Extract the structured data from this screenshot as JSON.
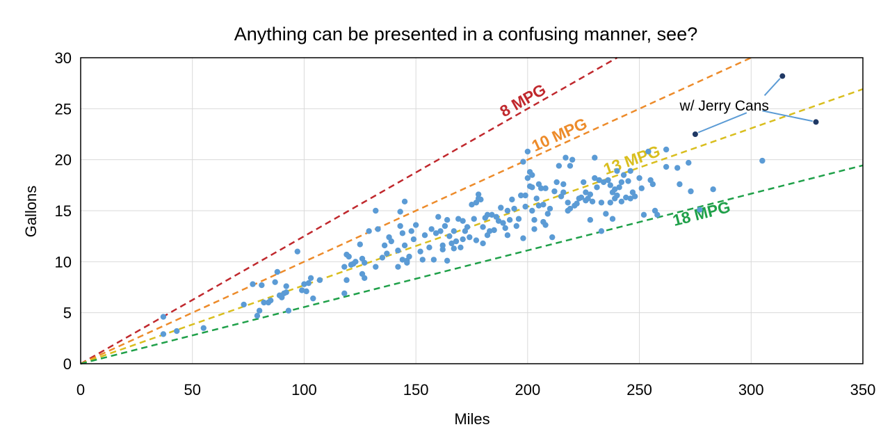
{
  "chart_data": {
    "type": "scatter",
    "title": "Anything can be presented in a confusing manner, see?",
    "xlabel": "Miles",
    "ylabel": "Gallons",
    "xlim": [
      0,
      350
    ],
    "ylim": [
      0,
      30
    ],
    "x_ticks": [
      0,
      50,
      100,
      150,
      200,
      250,
      300,
      350
    ],
    "y_ticks": [
      0,
      5,
      10,
      15,
      20,
      25,
      30
    ],
    "grid": true,
    "legend": "none",
    "colors": {
      "points": "#5B9BD5",
      "highlight_points": "#1F3864",
      "grid": "#D9D9D9",
      "mpg_8": "#C0282D",
      "mpg_10": "#ED8B2A",
      "mpg_13": "#D9BE1E",
      "mpg_18": "#1FA049"
    },
    "reference_lines": [
      {
        "label": "8 MPG",
        "mpg": 8,
        "color": "#C0282D"
      },
      {
        "label": "10 MPG",
        "mpg": 10,
        "color": "#ED8B2A"
      },
      {
        "label": "13 MPG",
        "mpg": 13,
        "color": "#D9BE1E"
      },
      {
        "label": "18 MPG",
        "mpg": 18,
        "color": "#1FA049"
      }
    ],
    "annotation": {
      "text": "w/ Jerry Cans",
      "points": [
        [
          275,
          22.5
        ],
        [
          314,
          28.2
        ],
        [
          329,
          23.7
        ]
      ]
    },
    "points": [
      [
        37,
        4.6
      ],
      [
        37,
        2.9
      ],
      [
        43,
        3.2
      ],
      [
        55,
        3.5
      ],
      [
        73,
        5.8
      ],
      [
        77,
        7.8
      ],
      [
        79,
        4.7
      ],
      [
        80,
        5.2
      ],
      [
        81,
        7.7
      ],
      [
        82,
        6.0
      ],
      [
        84,
        6.0
      ],
      [
        85,
        6.2
      ],
      [
        87,
        8.0
      ],
      [
        88,
        9.0
      ],
      [
        89,
        6.7
      ],
      [
        90,
        6.5
      ],
      [
        91,
        6.9
      ],
      [
        92,
        7.6
      ],
      [
        92,
        7.0
      ],
      [
        93,
        5.2
      ],
      [
        97,
        11.0
      ],
      [
        99,
        7.2
      ],
      [
        100,
        7.8
      ],
      [
        101,
        7.1
      ],
      [
        102,
        7.9
      ],
      [
        103,
        8.4
      ],
      [
        104,
        6.4
      ],
      [
        107,
        8.2
      ],
      [
        118,
        6.9
      ],
      [
        118,
        9.5
      ],
      [
        119,
        10.7
      ],
      [
        119,
        8.2
      ],
      [
        120,
        10.5
      ],
      [
        121,
        9.7
      ],
      [
        122,
        9.8
      ],
      [
        123,
        10.0
      ],
      [
        125,
        11.7
      ],
      [
        126,
        10.3
      ],
      [
        126,
        8.8
      ],
      [
        127,
        8.4
      ],
      [
        127,
        9.9
      ],
      [
        129,
        13.0
      ],
      [
        132,
        15.0
      ],
      [
        132,
        9.5
      ],
      [
        133,
        13.2
      ],
      [
        135,
        10.4
      ],
      [
        136,
        11.6
      ],
      [
        137,
        10.8
      ],
      [
        138,
        12.4
      ],
      [
        139,
        12.0
      ],
      [
        142,
        9.5
      ],
      [
        142,
        11.1
      ],
      [
        143,
        14.9
      ],
      [
        143,
        13.5
      ],
      [
        144,
        12.8
      ],
      [
        144,
        10.2
      ],
      [
        145,
        15.9
      ],
      [
        145,
        11.6
      ],
      [
        146,
        10.1
      ],
      [
        146,
        9.9
      ],
      [
        147,
        10.5
      ],
      [
        148,
        13.0
      ],
      [
        149,
        12.2
      ],
      [
        150,
        13.6
      ],
      [
        152,
        11.0
      ],
      [
        153,
        10.2
      ],
      [
        154,
        12.6
      ],
      [
        156,
        11.4
      ],
      [
        157,
        13.2
      ],
      [
        158,
        10.2
      ],
      [
        159,
        12.8
      ],
      [
        160,
        14.4
      ],
      [
        161,
        13.0
      ],
      [
        162,
        11.6
      ],
      [
        162,
        11.2
      ],
      [
        163,
        13.5
      ],
      [
        164,
        10.1
      ],
      [
        164,
        14.1
      ],
      [
        165,
        12.5
      ],
      [
        166,
        11.8
      ],
      [
        167,
        13.0
      ],
      [
        167,
        11.3
      ],
      [
        168,
        12.0
      ],
      [
        169,
        14.2
      ],
      [
        170,
        11.4
      ],
      [
        171,
        12.2
      ],
      [
        171,
        14.0
      ],
      [
        172,
        13.0
      ],
      [
        173,
        13.4
      ],
      [
        174,
        12.4
      ],
      [
        175,
        15.6
      ],
      [
        176,
        14.2
      ],
      [
        177,
        12.1
      ],
      [
        177,
        15.8
      ],
      [
        178,
        16.6
      ],
      [
        178,
        16.2
      ],
      [
        179,
        16.1
      ],
      [
        180,
        13.4
      ],
      [
        180,
        11.8
      ],
      [
        181,
        14.3
      ],
      [
        182,
        14.6
      ],
      [
        182,
        12.6
      ],
      [
        183,
        13.0
      ],
      [
        184,
        14.6
      ],
      [
        185,
        13.1
      ],
      [
        186,
        14.4
      ],
      [
        187,
        14.0
      ],
      [
        188,
        15.3
      ],
      [
        189,
        13.8
      ],
      [
        190,
        13.3
      ],
      [
        191,
        15.0
      ],
      [
        191,
        12.6
      ],
      [
        192,
        14.1
      ],
      [
        193,
        16.1
      ],
      [
        194,
        15.2
      ],
      [
        195,
        13.5
      ],
      [
        196,
        14.2
      ],
      [
        197,
        16.5
      ],
      [
        198,
        12.3
      ],
      [
        198,
        19.8
      ],
      [
        199,
        15.4
      ],
      [
        199,
        16.5
      ],
      [
        200,
        20.8
      ],
      [
        200,
        18.2
      ],
      [
        201,
        17.4
      ],
      [
        201,
        18.8
      ],
      [
        202,
        17.3
      ],
      [
        202,
        18.5
      ],
      [
        202,
        15.0
      ],
      [
        203,
        13.2
      ],
      [
        203,
        14.1
      ],
      [
        204,
        16.2
      ],
      [
        205,
        17.6
      ],
      [
        205,
        15.5
      ],
      [
        206,
        17.2
      ],
      [
        207,
        13.9
      ],
      [
        207,
        15.6
      ],
      [
        208,
        17.2
      ],
      [
        208,
        13.6
      ],
      [
        209,
        14.7
      ],
      [
        210,
        15.2
      ],
      [
        211,
        12.4
      ],
      [
        212,
        16.9
      ],
      [
        213,
        17.8
      ],
      [
        214,
        19.4
      ],
      [
        215,
        16.4
      ],
      [
        216,
        17.6
      ],
      [
        216,
        16.8
      ],
      [
        217,
        20.2
      ],
      [
        218,
        15.8
      ],
      [
        218,
        15.0
      ],
      [
        219,
        19.4
      ],
      [
        219,
        15.2
      ],
      [
        220,
        20.0
      ],
      [
        221,
        15.5
      ],
      [
        222,
        15.7
      ],
      [
        223,
        16.2
      ],
      [
        224,
        16.3
      ],
      [
        225,
        17.8
      ],
      [
        226,
        16.8
      ],
      [
        226,
        16.0
      ],
      [
        227,
        16.2
      ],
      [
        228,
        14.1
      ],
      [
        228,
        16.6
      ],
      [
        229,
        15.9
      ],
      [
        230,
        18.2
      ],
      [
        230,
        20.2
      ],
      [
        231,
        17.3
      ],
      [
        232,
        18.0
      ],
      [
        233,
        13.0
      ],
      [
        233,
        15.8
      ],
      [
        234,
        17.8
      ],
      [
        235,
        14.7
      ],
      [
        236,
        18.0
      ],
      [
        237,
        17.5
      ],
      [
        237,
        15.8
      ],
      [
        238,
        16.8
      ],
      [
        238,
        14.2
      ],
      [
        239,
        17.1
      ],
      [
        239,
        16.2
      ],
      [
        240,
        18.9
      ],
      [
        240,
        16.5
      ],
      [
        241,
        17.3
      ],
      [
        242,
        17.8
      ],
      [
        242,
        15.9
      ],
      [
        243,
        18.5
      ],
      [
        244,
        16.3
      ],
      [
        245,
        17.9
      ],
      [
        246,
        16.2
      ],
      [
        246,
        18.9
      ],
      [
        247,
        16.8
      ],
      [
        248,
        16.4
      ],
      [
        250,
        18.2
      ],
      [
        251,
        17.2
      ],
      [
        252,
        14.6
      ],
      [
        254,
        20.8
      ],
      [
        255,
        18.0
      ],
      [
        256,
        17.6
      ],
      [
        257,
        15.0
      ],
      [
        258,
        14.6
      ],
      [
        262,
        21.0
      ],
      [
        262,
        19.3
      ],
      [
        267,
        19.2
      ],
      [
        268,
        17.6
      ],
      [
        272,
        19.7
      ],
      [
        273,
        16.9
      ],
      [
        277,
        15.1
      ],
      [
        283,
        17.1
      ],
      [
        305,
        19.9
      ]
    ]
  }
}
